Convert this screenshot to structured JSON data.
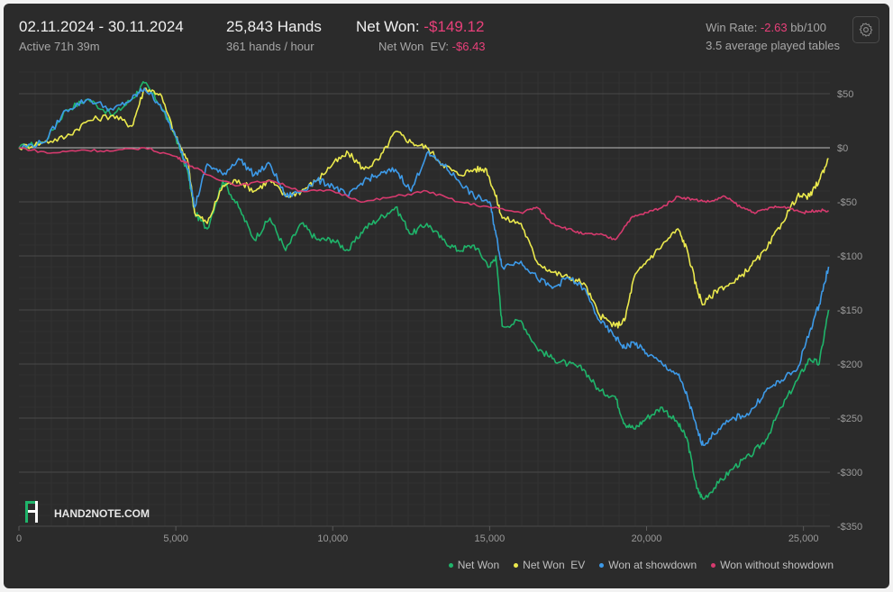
{
  "header": {
    "date_range": "02.11.2024 - 30.11.2024",
    "active_time": "Active 71h 39m",
    "hands": "25,843 Hands",
    "hands_rate": "361 hands / hour",
    "net_won_label": "Net Won:",
    "net_won_value": "-$149.12",
    "net_won_ev_label": "Net Won  EV:",
    "net_won_ev_value": "-$6.43",
    "win_rate_label": "Win Rate:",
    "win_rate_value": "-2.63",
    "win_rate_unit": "bb/100",
    "tables": "3.5 average played tables"
  },
  "watermark": "HAND2NOTE.COM",
  "chart_data": {
    "type": "line",
    "xlabel": "",
    "ylabel": "",
    "xlim": [
      0,
      25843
    ],
    "ylim": [
      -350,
      70
    ],
    "x_ticks": [
      0,
      5000,
      10000,
      15000,
      20000,
      25000
    ],
    "x_tick_labels": [
      "0",
      "5,000",
      "10,000",
      "15,000",
      "20,000",
      "25,000"
    ],
    "y_ticks": [
      50,
      0,
      -50,
      -100,
      -150,
      -200,
      -250,
      -300,
      -350
    ],
    "y_tick_labels": [
      "$50",
      "$0",
      "-$50",
      "-$100",
      "-$150",
      "-$200",
      "-$250",
      "-$300",
      "-$350"
    ],
    "grid": true,
    "legend_position": "bottom-right",
    "series": [
      {
        "name": "Net Won",
        "color": "#1fb46a",
        "x": [
          0,
          800,
          1500,
          2200,
          3000,
          3600,
          4000,
          4500,
          5000,
          5400,
          5600,
          6000,
          6500,
          7000,
          7500,
          8000,
          8500,
          9000,
          9500,
          10000,
          10500,
          11000,
          11500,
          12000,
          12500,
          13000,
          13500,
          14000,
          14500,
          15000,
          15200,
          15400,
          16000,
          16500,
          17000,
          17500,
          18000,
          18500,
          19000,
          19300,
          19600,
          20000,
          20500,
          21000,
          21300,
          21600,
          21800,
          22300,
          22800,
          23300,
          23800,
          24300,
          24800,
          25200,
          25500,
          25800
        ],
        "y": [
          0,
          5,
          35,
          45,
          30,
          45,
          60,
          40,
          10,
          -25,
          -60,
          -75,
          -30,
          -55,
          -85,
          -65,
          -95,
          -70,
          -85,
          -85,
          -95,
          -75,
          -65,
          -55,
          -80,
          -70,
          -85,
          -95,
          -90,
          -110,
          -100,
          -165,
          -160,
          -185,
          -195,
          -200,
          -205,
          -225,
          -230,
          -255,
          -260,
          -250,
          -240,
          -255,
          -270,
          -315,
          -325,
          -310,
          -295,
          -285,
          -270,
          -240,
          -215,
          -195,
          -200,
          -150
        ]
      },
      {
        "name": "Net Won  EV",
        "color": "#ebe94d",
        "x": [
          0,
          800,
          1500,
          2200,
          3000,
          3600,
          4000,
          4500,
          5000,
          5400,
          5600,
          6000,
          6500,
          7000,
          7500,
          8000,
          8500,
          9000,
          9500,
          10000,
          10500,
          11000,
          11500,
          12000,
          12500,
          13000,
          13500,
          14000,
          14500,
          14900,
          15200,
          15400,
          16000,
          16500,
          17000,
          17500,
          18000,
          18500,
          19000,
          19300,
          19600,
          20000,
          20500,
          21000,
          21300,
          21600,
          21800,
          22300,
          22800,
          23300,
          23800,
          24300,
          24800,
          25200,
          25500,
          25800
        ],
        "y": [
          0,
          5,
          10,
          25,
          30,
          20,
          55,
          50,
          10,
          -15,
          -60,
          -70,
          -35,
          -30,
          -40,
          -30,
          -45,
          -40,
          -30,
          -15,
          -5,
          -20,
          -10,
          15,
          5,
          0,
          -15,
          -25,
          -20,
          -20,
          -45,
          -65,
          -70,
          -105,
          -115,
          -120,
          -125,
          -155,
          -165,
          -160,
          -120,
          -105,
          -90,
          -75,
          -95,
          -130,
          -145,
          -130,
          -125,
          -110,
          -95,
          -70,
          -45,
          -45,
          -30,
          -10
        ]
      },
      {
        "name": "Won at showdown",
        "color": "#3d9ae8",
        "x": [
          0,
          800,
          1500,
          2200,
          3000,
          3600,
          4000,
          4500,
          5000,
          5400,
          5600,
          6000,
          6500,
          7000,
          7500,
          8000,
          8500,
          9000,
          9500,
          10000,
          10500,
          11000,
          11500,
          12000,
          12500,
          13000,
          13500,
          14000,
          14500,
          15000,
          15200,
          15400,
          16000,
          16500,
          17000,
          17500,
          18000,
          18500,
          19000,
          19300,
          19600,
          20000,
          20500,
          21000,
          21300,
          21600,
          21800,
          22300,
          22800,
          23300,
          23800,
          24300,
          24800,
          25200,
          25500,
          25800
        ],
        "y": [
          0,
          5,
          35,
          45,
          35,
          45,
          55,
          40,
          10,
          -20,
          -55,
          -15,
          -25,
          -10,
          -25,
          -15,
          -45,
          -40,
          -30,
          -35,
          -45,
          -30,
          -25,
          -20,
          -40,
          -5,
          -15,
          -30,
          -45,
          -50,
          -80,
          -110,
          -105,
          -120,
          -130,
          -120,
          -130,
          -160,
          -175,
          -185,
          -180,
          -190,
          -200,
          -210,
          -230,
          -260,
          -275,
          -260,
          -250,
          -245,
          -225,
          -215,
          -205,
          -170,
          -145,
          -110
        ]
      },
      {
        "name": "Won without showdown",
        "color": "#d63a6e",
        "x": [
          0,
          1000,
          2000,
          3000,
          4000,
          5000,
          5400,
          6000,
          7000,
          8000,
          9000,
          10000,
          11000,
          12000,
          13000,
          14000,
          15000,
          16000,
          16500,
          17000,
          17500,
          18000,
          18500,
          19000,
          19500,
          20000,
          20500,
          21000,
          21500,
          22000,
          22500,
          23000,
          23500,
          24000,
          24500,
          25000,
          25400,
          25800
        ],
        "y": [
          0,
          -5,
          -2,
          -3,
          0,
          -8,
          -15,
          -25,
          -35,
          -30,
          -40,
          -40,
          -50,
          -45,
          -40,
          -50,
          -55,
          -60,
          -55,
          -70,
          -75,
          -80,
          -80,
          -85,
          -65,
          -60,
          -55,
          -45,
          -48,
          -50,
          -45,
          -55,
          -60,
          -55,
          -55,
          -60,
          -58,
          -58
        ]
      }
    ]
  }
}
